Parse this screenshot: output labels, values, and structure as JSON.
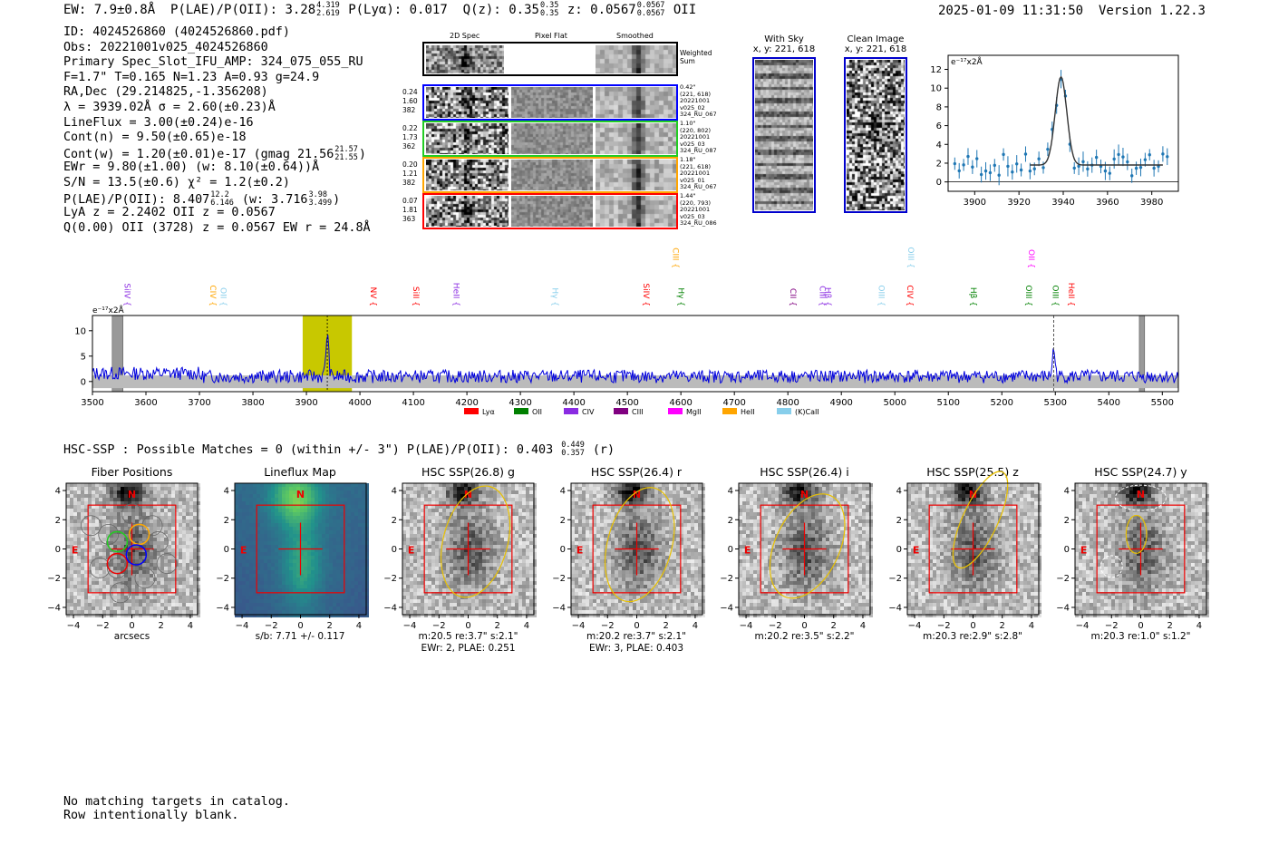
{
  "header": {
    "ew": "EW: 7.9±0.8Å",
    "plae": "P(LAE)/P(OII): 3.28",
    "plae_hi": "4.319",
    "plae_lo": "2.619",
    "plya": "P(Lyα): 0.017",
    "qz": "Q(z): 0.35",
    "qz_hi": "0.35",
    "qz_lo": "0.35",
    "z": "z: 0.0567",
    "z_hi": "0.0567",
    "z_lo": "0.0567",
    "z_line": "OII",
    "datetime": "2025-01-09 11:31:50",
    "version": "Version 1.22.3"
  },
  "info": {
    "id": "ID: 4024526860 (4024526860.pdf)",
    "obs": "Obs: 20221001v025_4024526860",
    "primary": "Primary Spec_Slot_IFU_AMP: 324_075_055_RU",
    "fit": "F=1.7\"  T=0.165  N=1.23  A=0.93  g=24.9",
    "radec": "RA,Dec (29.214825,-1.356208)",
    "lambda": "λ = 3939.02Å  σ = 2.60(±0.23)Å",
    "lineflux": "LineFlux = 3.00(±0.24)e-16",
    "contn": "Cont(n) = 9.50(±0.65)e-18",
    "contw": "Cont(w) = 1.20(±0.01)e-17 (gmag 21.56",
    "contw_hi": "21.57",
    "contw_lo": "21.55",
    "contw_end": ")",
    "ewr": "EWr = 9.80(±1.00) (w: 8.10(±0.64))Å",
    "sn": "S/N = 13.5(±0.6)  χ² = 1.2(±0.2)",
    "plae2": "P(LAE)/P(OII): 8.407",
    "plae2_hi": "12.2",
    "plae2_lo": "6.146",
    "plae2_w": "(w: 3.716",
    "plae2_w_hi": "3.98",
    "plae2_w_lo": "3.499",
    "plae2_end": ")",
    "lya": "LyA z = 2.2402  OII z = 0.0567",
    "q": "Q(0.00) OII (3728) z = 0.0567  EW r = 24.8Å"
  },
  "cutouts": {
    "col_titles": [
      "2D Spec",
      "Pixel Flat",
      "Smoothed"
    ],
    "weighted_label": "Weighted Sum",
    "rows": [
      {
        "left": [
          "0.24",
          "1.60",
          "382"
        ],
        "right": [
          "0.42\"",
          "(221, 618)",
          "20221001",
          "v025_02",
          "324_RU_067"
        ],
        "color": "#0000ff"
      },
      {
        "left": [
          "0.22",
          "1.73",
          "362"
        ],
        "right": [
          "1.10\"",
          "(220, 802)",
          "20221001",
          "v025_03",
          "324_RU_087"
        ],
        "color": "#22cc22"
      },
      {
        "left": [
          "0.20",
          "1.21",
          "382"
        ],
        "right": [
          "1.18\"",
          "(221, 618)",
          "20221001",
          "v025_01",
          "324_RU_067"
        ],
        "color": "#ffa500"
      },
      {
        "left": [
          "0.07",
          "1.81",
          "363"
        ],
        "right": [
          "1.44\"",
          "(220, 793)",
          "20221001",
          "v025_03",
          "324_RU_086"
        ],
        "color": "#ff0000"
      }
    ]
  },
  "sky": {
    "with_sky_title": "With Sky",
    "with_sky_xy": "x, y: 221, 618",
    "clean_title": "Clean Image",
    "clean_xy": "x, y: 221, 618"
  },
  "line_fit": {
    "unit_label": "e⁻¹⁷x2Å",
    "x_ticks": [
      "3900",
      "3920",
      "3940",
      "3960",
      "3980"
    ],
    "y_ticks": [
      "0",
      "2",
      "4",
      "6",
      "8",
      "10",
      "12"
    ],
    "xlim": [
      3888,
      3992
    ],
    "ylim": [
      -1,
      13.5
    ],
    "center": 3939.0,
    "sigma": 2.6,
    "amplitude": 9.4,
    "continuum": 1.8
  },
  "spectrum": {
    "unit_label": "e⁻¹⁷x2Å",
    "x_ticks": [
      "3500",
      "3600",
      "3700",
      "3800",
      "3900",
      "4000",
      "4100",
      "4200",
      "4300",
      "4400",
      "4500",
      "4600",
      "4700",
      "4800",
      "4900",
      "5000",
      "5100",
      "5200",
      "5300",
      "5400",
      "5500"
    ],
    "y_ticks": [
      "0",
      "5",
      "10"
    ],
    "xlim": [
      3500,
      5530
    ],
    "ylim": [
      -2,
      13
    ],
    "line_labels": [
      {
        "name": "SiIV",
        "wave": 3555,
        "color": "#8a2be2",
        "row": 2
      },
      {
        "name": "CIV",
        "wave": 3715,
        "color": "#ffa500",
        "row": 2
      },
      {
        "name": "OII",
        "wave": 3735,
        "color": "#87ceeb",
        "row": 2
      },
      {
        "name": "NV",
        "wave": 4015,
        "color": "#ff0000",
        "row": 2
      },
      {
        "name": "SiII",
        "wave": 4095,
        "color": "#ff0000",
        "row": 2
      },
      {
        "name": "HeII",
        "wave": 4170,
        "color": "#8a2be2",
        "row": 2
      },
      {
        "name": "Hγ",
        "wave": 4355,
        "color": "#87ceeb",
        "row": 2
      },
      {
        "name": "CIII",
        "wave": 4580,
        "color": "#ffa500",
        "row": 1
      },
      {
        "name": "SiIV",
        "wave": 4525,
        "color": "#ff0000",
        "row": 2
      },
      {
        "name": "Hγ",
        "wave": 4590,
        "color": "#008000",
        "row": 2
      },
      {
        "name": "CII",
        "wave": 4800,
        "color": "#800080",
        "row": 2
      },
      {
        "name": "CIII",
        "wave": 4855,
        "color": "#8a2be2",
        "row": 2
      },
      {
        "name": "Hβ",
        "wave": 4865,
        "color": "#8a2be2",
        "row": 2
      },
      {
        "name": "OIII",
        "wave": 4965,
        "color": "#87ceeb",
        "row": 2
      },
      {
        "name": "OIII",
        "wave": 5020,
        "color": "#87ceeb",
        "row": 1
      },
      {
        "name": "CIV",
        "wave": 5018,
        "color": "#ff0000",
        "row": 2
      },
      {
        "name": "Hβ",
        "wave": 5137,
        "color": "#008000",
        "row": 2
      },
      {
        "name": "OII",
        "wave": 5245,
        "color": "#ff00ff",
        "row": 1
      },
      {
        "name": "OIII",
        "wave": 5240,
        "color": "#008000",
        "row": 2
      },
      {
        "name": "OIII",
        "wave": 5290,
        "color": "#008000",
        "row": 2
      },
      {
        "name": "HeII",
        "wave": 5320,
        "color": "#ff0000",
        "row": 2
      }
    ],
    "legend": [
      {
        "name": "Lyα",
        "color": "#ff0000"
      },
      {
        "name": "OII",
        "color": "#008000"
      },
      {
        "name": "CIV",
        "color": "#8a2be2"
      },
      {
        "name": "CIII",
        "color": "#800080"
      },
      {
        "name": "MgII",
        "color": "#ff00ff"
      },
      {
        "name": "HeII",
        "color": "#ffa500"
      },
      {
        "name": "(K)CaII",
        "color": "#87ceeb"
      }
    ],
    "emission_line": 3939,
    "highlight_range": [
      3893,
      3985
    ],
    "second_line": 5297
  },
  "hsc": {
    "header": "HSC-SSP : Possible Matches = 0 (within +/- 3\")  P(LAE)/P(OII): 0.403",
    "header_hi": "0.449",
    "header_lo": "0.357",
    "header_end": "(r)",
    "axis_ticks": [
      "−4",
      "−2",
      "0",
      "2",
      "4"
    ],
    "panels": [
      {
        "title": "Fiber Positions",
        "cap1": "arcsecs",
        "cap2": "",
        "kind": "fiber"
      },
      {
        "title": "Lineflux Map",
        "cap1": "s/b: 7.71 +/- 0.117",
        "cap2": "",
        "kind": "lineflux"
      },
      {
        "title": "HSC SSP(26.8) g",
        "cap1": "m:20.5  re:3.7\"  s:2.1\"",
        "cap2": "EWr: 2, PLAE: 0.251",
        "kind": "hsc"
      },
      {
        "title": "HSC SSP(26.4) r",
        "cap1": "m:20.2  re:3.7\"  s:2.1\"",
        "cap2": "EWr: 3, PLAE: 0.403",
        "kind": "hsc"
      },
      {
        "title": "HSC SSP(26.4) i",
        "cap1": "m:20.2  re:3.5\"  s:2.2\"",
        "cap2": "",
        "kind": "hsc"
      },
      {
        "title": "HSC SSP(25.5) z",
        "cap1": "m:20.3  re:2.9\"  s:2.8\"",
        "cap2": "",
        "kind": "hsc"
      },
      {
        "title": "HSC SSP(24.7) y",
        "cap1": "m:20.3  re:1.0\"  s:1.2\"",
        "cap2": "",
        "kind": "hsc"
      }
    ],
    "north": "N",
    "east": "E"
  },
  "footer": {
    "line1": "No matching targets in catalog.",
    "line2": "Row intentionally blank."
  }
}
